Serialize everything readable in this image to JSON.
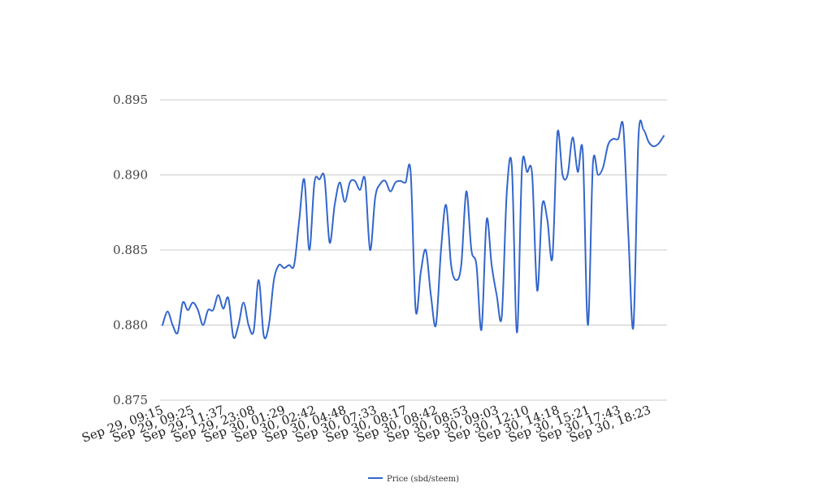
{
  "chart_data": {
    "type": "line",
    "title": "",
    "xlabel": "",
    "ylabel": "",
    "ylim": [
      0.875,
      0.895
    ],
    "yticks": [
      "0.875",
      "0.880",
      "0.885",
      "0.890",
      "0.895"
    ],
    "grid": true,
    "legend_position": "bottom",
    "x_tick_labels": [
      "Sep 29, 09:15",
      "Sep 29, 09:25",
      "Sep 29, 11:37",
      "Sep 29, 23:08",
      "Sep 30, 01:29",
      "Sep 30, 02:42",
      "Sep 30, 04:48",
      "Sep 30, 07:33",
      "Sep 30, 08:17",
      "Sep 30, 08:42",
      "Sep 30, 08:53",
      "Sep 30, 09:03",
      "Sep 30, 12:10",
      "Sep 30, 14:18",
      "Sep 30, 15:21",
      "Sep 30, 17:43",
      "Sep 30, 18:23"
    ],
    "series": [
      {
        "name": "Price (sbd/steem)",
        "color": "#3366cc",
        "values": [
          0.88,
          0.8809,
          0.88,
          0.8795,
          0.8815,
          0.881,
          0.8815,
          0.881,
          0.88,
          0.881,
          0.881,
          0.882,
          0.8811,
          0.8818,
          0.8792,
          0.88,
          0.8815,
          0.88,
          0.8796,
          0.883,
          0.8793,
          0.88,
          0.883,
          0.884,
          0.8838,
          0.884,
          0.884,
          0.887,
          0.8897,
          0.885,
          0.8895,
          0.8897,
          0.8898,
          0.8855,
          0.888,
          0.8895,
          0.8882,
          0.8895,
          0.8896,
          0.889,
          0.8897,
          0.885,
          0.8885,
          0.8894,
          0.8896,
          0.8889,
          0.8895,
          0.8896,
          0.8895,
          0.8902,
          0.881,
          0.8835,
          0.885,
          0.882,
          0.88,
          0.885,
          0.888,
          0.884,
          0.883,
          0.884,
          0.8889,
          0.885,
          0.884,
          0.8797,
          0.887,
          0.884,
          0.882,
          0.8806,
          0.8889,
          0.8905,
          0.8795,
          0.8905,
          0.8902,
          0.89,
          0.8823,
          0.888,
          0.887,
          0.8845,
          0.8928,
          0.89,
          0.89,
          0.8925,
          0.8902,
          0.8915,
          0.88,
          0.8907,
          0.89,
          0.8905,
          0.892,
          0.8924,
          0.8924,
          0.8932,
          0.886,
          0.8799,
          0.8925,
          0.893,
          0.8922,
          0.8919,
          0.8921,
          0.8926
        ]
      }
    ]
  }
}
